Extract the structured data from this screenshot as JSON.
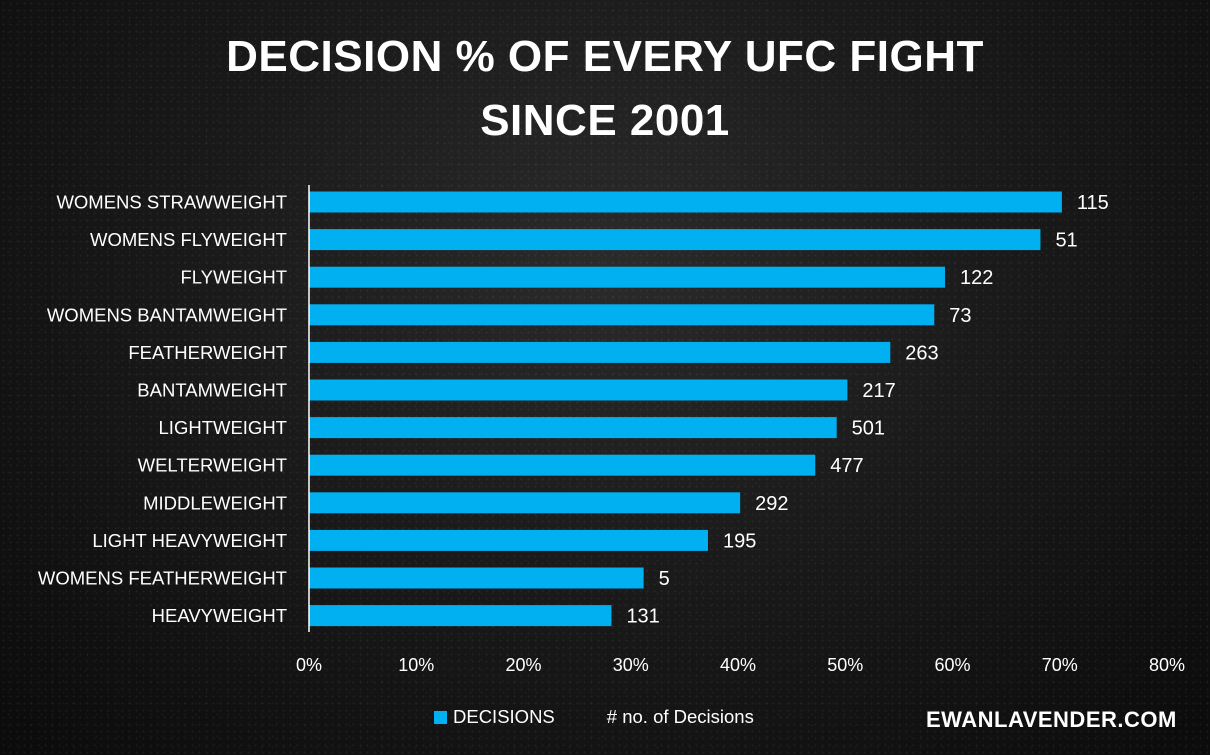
{
  "title_line_1": "DECISION % OF EVERY UFC FIGHT",
  "title_line_2": "SINCE 2001",
  "watermark": "EWANLAVENDER.COM",
  "legend": {
    "series_label": "DECISIONS",
    "secondary_label": "# no. of Decisions"
  },
  "colors": {
    "bar": "#00B0F0",
    "text": "#FFFFFF",
    "axis": "#FFFFFF"
  },
  "chart_data": {
    "type": "bar",
    "orientation": "horizontal",
    "categories": [
      "WOMENS STRAWWEIGHT",
      "WOMENS FLYWEIGHT",
      "FLYWEIGHT",
      "WOMENS BANTAMWEIGHT",
      "FEATHERWEIGHT",
      "BANTAMWEIGHT",
      "LIGHTWEIGHT",
      "WELTERWEIGHT",
      "MIDDLEWEIGHT",
      "LIGHT HEAVYWEIGHT",
      "WOMENS FEATHERWEIGHT",
      "HEAVYWEIGHT"
    ],
    "series": [
      {
        "name": "DECISIONS",
        "values": [
          70.2,
          68.2,
          59.3,
          58.3,
          54.2,
          50.2,
          49.2,
          47.2,
          40.2,
          37.2,
          31.2,
          28.2
        ]
      }
    ],
    "data_labels": [
      "115",
      "51",
      "122",
      "73",
      "263",
      "217",
      "501",
      "477",
      "292",
      "195",
      "5",
      "131"
    ],
    "x_ticks": [
      "0%",
      "10%",
      "20%",
      "30%",
      "40%",
      "50%",
      "60%",
      "70%",
      "80%"
    ],
    "xlim": [
      0,
      80
    ],
    "grid": false,
    "legend_position": "bottom"
  }
}
